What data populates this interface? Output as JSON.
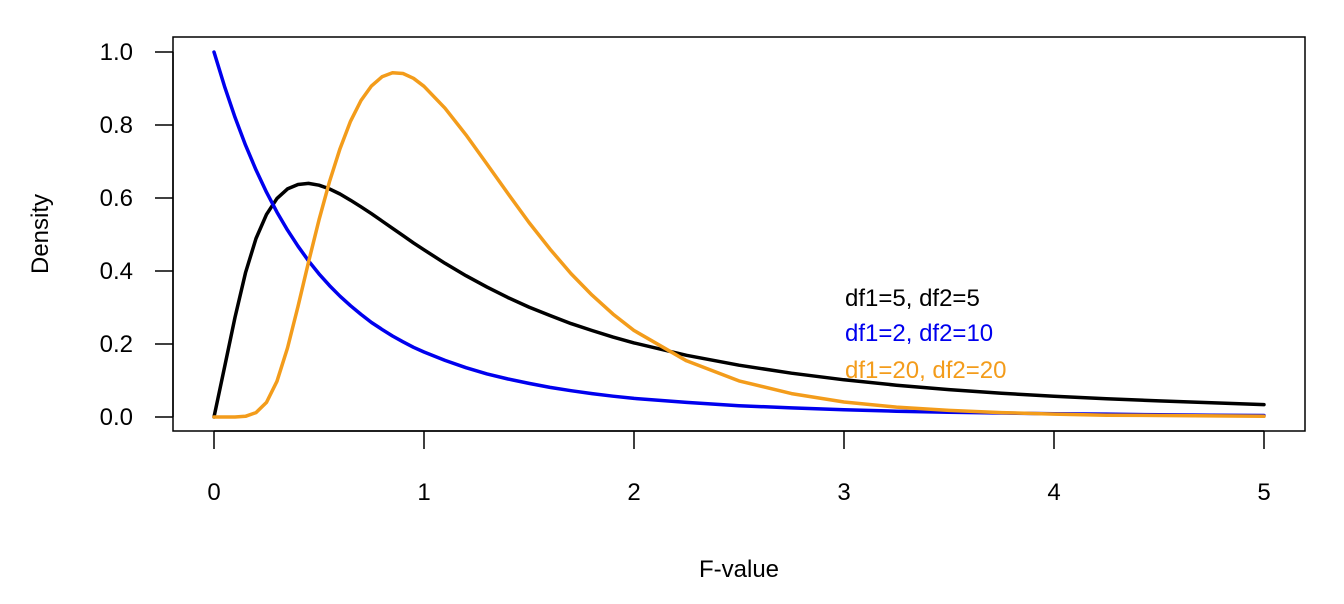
{
  "chart_data": {
    "type": "line",
    "xlabel": "F-value",
    "ylabel": "Density",
    "xlim": [
      0,
      5
    ],
    "ylim": [
      0,
      1.0
    ],
    "x_ticks": [
      "0",
      "1",
      "2",
      "3",
      "4",
      "5"
    ],
    "y_ticks": [
      "0.0",
      "0.2",
      "0.4",
      "0.6",
      "0.8",
      "1.0"
    ],
    "grid": false,
    "legend_position": "right",
    "x": [
      0,
      0.05,
      0.1,
      0.15,
      0.2,
      0.25,
      0.3,
      0.35,
      0.4,
      0.45,
      0.5,
      0.55,
      0.6,
      0.65,
      0.7,
      0.75,
      0.8,
      0.85,
      0.9,
      0.95,
      1.0,
      1.1,
      1.2,
      1.3,
      1.4,
      1.5,
      1.6,
      1.7,
      1.8,
      1.9,
      2.0,
      2.25,
      2.5,
      2.75,
      3.0,
      3.25,
      3.5,
      3.75,
      4.0,
      4.25,
      4.5,
      4.75,
      5.0
    ],
    "series": [
      {
        "name": "df1=5, df2=5",
        "color": "#000000",
        "values": [
          0,
          0.136,
          0.273,
          0.395,
          0.489,
          0.555,
          0.599,
          0.625,
          0.637,
          0.64,
          0.635,
          0.625,
          0.611,
          0.594,
          0.576,
          0.557,
          0.537,
          0.517,
          0.497,
          0.477,
          0.458,
          0.421,
          0.387,
          0.356,
          0.327,
          0.301,
          0.278,
          0.256,
          0.237,
          0.219,
          0.203,
          0.169,
          0.142,
          0.12,
          0.102,
          0.087,
          0.075,
          0.065,
          0.057,
          0.05,
          0.044,
          0.039,
          0.034
        ]
      },
      {
        "name": "df1=2, df2=10",
        "color": "#0000ee",
        "values": [
          1.0,
          0.906,
          0.821,
          0.745,
          0.677,
          0.616,
          0.561,
          0.512,
          0.468,
          0.428,
          0.392,
          0.36,
          0.331,
          0.305,
          0.281,
          0.259,
          0.24,
          0.222,
          0.206,
          0.191,
          0.178,
          0.155,
          0.135,
          0.118,
          0.104,
          0.092,
          0.081,
          0.072,
          0.064,
          0.057,
          0.051,
          0.04,
          0.031,
          0.025,
          0.02,
          0.016,
          0.013,
          0.011,
          0.009,
          0.008,
          0.006,
          0.005,
          0.004
        ]
      },
      {
        "name": "df1=20, df2=20",
        "color": "#f39c1b",
        "values": [
          0,
          0.0,
          0.0,
          0.002,
          0.012,
          0.04,
          0.098,
          0.189,
          0.303,
          0.424,
          0.54,
          0.645,
          0.735,
          0.81,
          0.867,
          0.907,
          0.932,
          0.943,
          0.941,
          0.928,
          0.906,
          0.846,
          0.773,
          0.693,
          0.612,
          0.533,
          0.46,
          0.393,
          0.334,
          0.282,
          0.237,
          0.154,
          0.099,
          0.064,
          0.041,
          0.027,
          0.018,
          0.012,
          0.008,
          0.005,
          0.004,
          0.003,
          0.002
        ]
      }
    ]
  }
}
